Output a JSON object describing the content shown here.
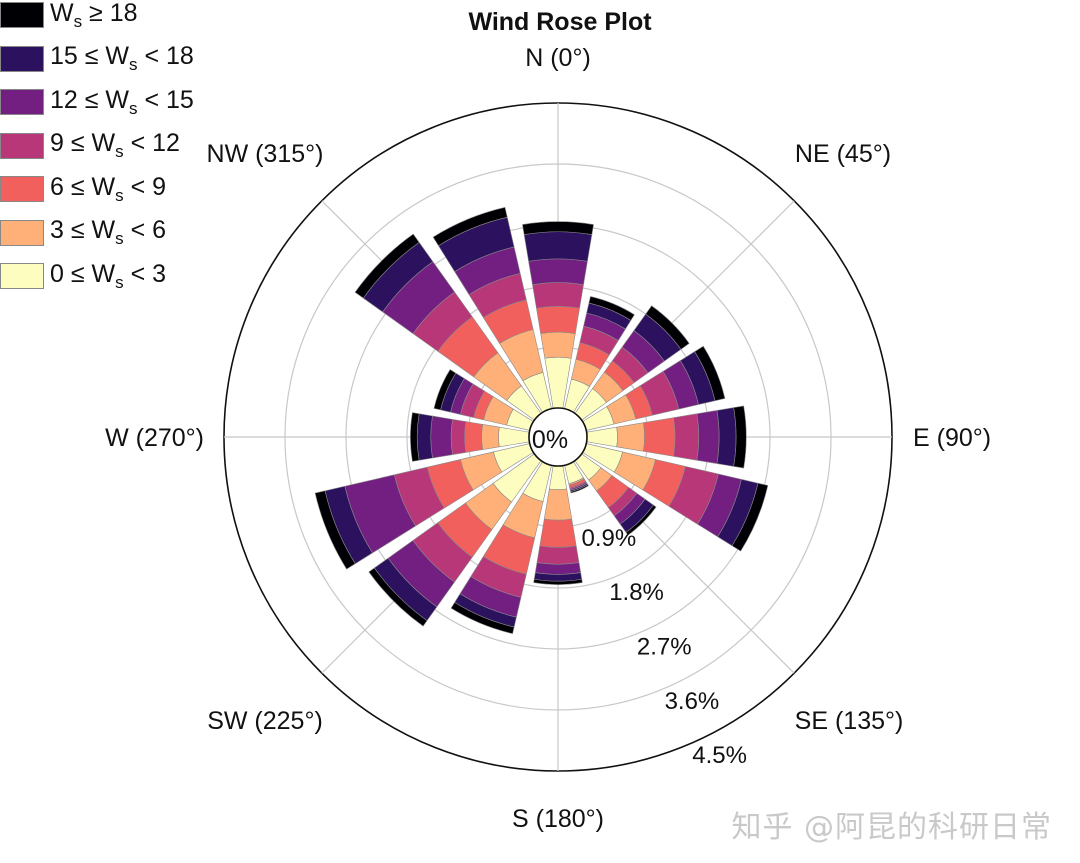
{
  "chart_data": {
    "type": "windrose",
    "title": "Wind Rose Plot",
    "center_label": "0%",
    "direction_labels": [
      "N (0°)",
      "NE (45°)",
      "E (90°)",
      "SE (135°)",
      "S (180°)",
      "SW (225°)",
      "W (270°)",
      "NW (315°)"
    ],
    "direction_angles_deg": [
      0,
      45,
      90,
      135,
      180,
      225,
      270,
      315
    ],
    "radial_ticks": [
      0.9,
      1.8,
      2.7,
      3.6,
      4.5
    ],
    "radial_tick_labels": [
      "0.9%",
      "1.8%",
      "2.7%",
      "3.6%",
      "4.5%"
    ],
    "rmax": 4.5,
    "legend": [
      {
        "label": "W",
        "sub": "s",
        "rest": " ≥ 18",
        "color": "#000004"
      },
      {
        "label": "15 ≤ W",
        "sub": "s",
        "rest": " < 18",
        "color": "#2c115f"
      },
      {
        "label": "12 ≤ W",
        "sub": "s",
        "rest": " < 15",
        "color": "#721f81"
      },
      {
        "label": "9 ≤ W",
        "sub": "s",
        "rest": " < 12",
        "color": "#b73779"
      },
      {
        "label": "6 ≤ W",
        "sub": "s",
        "rest": " < 9",
        "color": "#f1605d"
      },
      {
        "label": "3 ≤ W",
        "sub": "s",
        "rest": " < 6",
        "color": "#feb078"
      },
      {
        "label": "0 ≤ W",
        "sub": "s",
        "rest": " < 3",
        "color": "#fcfdbf"
      }
    ],
    "bin_colors": [
      "#fcfdbf",
      "#feb078",
      "#f1605d",
      "#b73779",
      "#721f81",
      "#2c115f",
      "#000004"
    ],
    "series": [
      {
        "dir": 0,
        "cumulative": [
          0.75,
          1.12,
          1.5,
          1.85,
          2.2,
          2.6,
          2.75
        ]
      },
      {
        "dir": 22.5,
        "cumulative": [
          0.45,
          0.75,
          1.0,
          1.25,
          1.45,
          1.6,
          1.7
        ]
      },
      {
        "dir": 45,
        "cumulative": [
          0.45,
          0.75,
          0.95,
          1.2,
          1.5,
          1.8,
          1.95
        ]
      },
      {
        "dir": 67.5,
        "cumulative": [
          0.42,
          0.75,
          1.0,
          1.4,
          1.7,
          1.95,
          2.1
        ]
      },
      {
        "dir": 90,
        "cumulative": [
          0.45,
          0.85,
          1.3,
          1.65,
          1.95,
          2.2,
          2.35
        ]
      },
      {
        "dir": 112.5,
        "cumulative": [
          0.55,
          1.05,
          1.5,
          2.0,
          2.35,
          2.6,
          2.75
        ]
      },
      {
        "dir": 135,
        "cumulative": [
          0.35,
          0.55,
          0.85,
          1.0,
          1.15,
          1.3,
          1.35
        ]
      },
      {
        "dir": 157.5,
        "cumulative": [
          0.28,
          0.3,
          0.34,
          0.36,
          0.38,
          0.4,
          0.42
        ]
      },
      {
        "dir": 180,
        "cumulative": [
          0.35,
          0.8,
          1.2,
          1.45,
          1.6,
          1.7,
          1.75
        ]
      },
      {
        "dir": 202.5,
        "cumulative": [
          0.55,
          1.1,
          1.65,
          2.0,
          2.3,
          2.45,
          2.55
        ]
      },
      {
        "dir": 225,
        "cumulative": [
          0.75,
          1.25,
          1.75,
          2.2,
          2.65,
          2.9,
          3.0
        ]
      },
      {
        "dir": 247.5,
        "cumulative": [
          0.55,
          1.05,
          1.55,
          2.05,
          2.8,
          3.1,
          3.25
        ]
      },
      {
        "dir": 270,
        "cumulative": [
          0.45,
          0.7,
          0.95,
          1.15,
          1.45,
          1.65,
          1.75
        ]
      },
      {
        "dir": 292.5,
        "cumulative": [
          0.35,
          0.7,
          0.85,
          1.05,
          1.2,
          1.35,
          1.45
        ]
      },
      {
        "dir": 315,
        "cumulative": [
          0.5,
          1.1,
          1.75,
          2.2,
          2.75,
          3.1,
          3.25
        ]
      },
      {
        "dir": 337.5,
        "cumulative": [
          0.55,
          1.2,
          1.65,
          2.05,
          2.45,
          2.9,
          3.05
        ]
      }
    ]
  },
  "watermark": "知乎 @阿昆的科研日常"
}
